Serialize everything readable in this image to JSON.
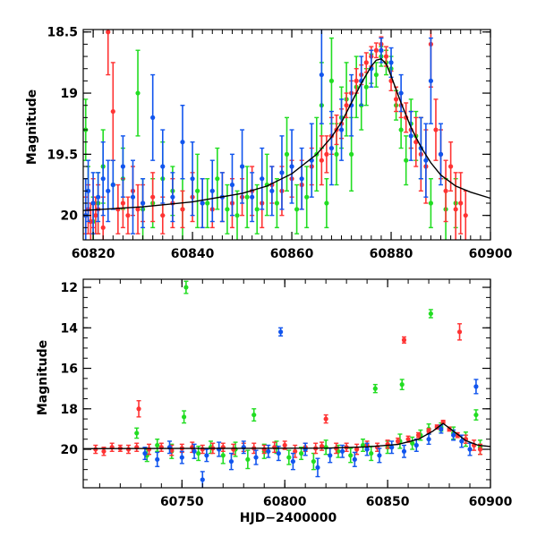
{
  "colors": {
    "green": "#22dd22",
    "red": "#ff3333",
    "blue": "#1155ee",
    "model": "#000000",
    "axis": "#000000"
  },
  "chart_data": [
    {
      "type": "scatter",
      "title": "",
      "xlabel": "",
      "ylabel": "Magnitude",
      "xlim": [
        60818,
        60900
      ],
      "ylim": [
        18.48,
        20.2
      ],
      "y_inverted": true,
      "xticks": [
        60820,
        60840,
        60860,
        60880,
        60900
      ],
      "xtick_labels": [
        "60820",
        "60840",
        "60860",
        "60880",
        "60900"
      ],
      "yticks": [
        18.5,
        19,
        19.5,
        20
      ],
      "ytick_labels": [
        "18.5",
        "19",
        "19.5",
        "20"
      ],
      "grid": false,
      "model_curve": {
        "x": [
          60818,
          60830,
          60840,
          60850,
          60855,
          60860,
          60865,
          60868,
          60870,
          60872,
          60874,
          60876,
          60877,
          60878,
          60879,
          60880,
          60882,
          60884,
          60886,
          60888,
          60890,
          60893,
          60896,
          60900
        ],
        "y": [
          19.96,
          19.93,
          19.89,
          19.82,
          19.76,
          19.66,
          19.5,
          19.36,
          19.24,
          19.08,
          18.92,
          18.78,
          18.73,
          18.72,
          18.76,
          18.86,
          19.08,
          19.28,
          19.44,
          19.57,
          19.67,
          19.76,
          19.81,
          19.86
        ]
      },
      "series": [
        {
          "color": "green",
          "x": [
            60818.5,
            60819,
            60820,
            60821,
            60822,
            60824,
            60826,
            60829,
            60830,
            60832,
            60834,
            60836,
            60838,
            60841,
            60843,
            60845,
            60847,
            60849,
            60851,
            60853,
            60855,
            60857,
            60859,
            60861,
            60863,
            60865,
            60866,
            60867,
            60868,
            60869,
            60870,
            60871,
            60872,
            60873,
            60874,
            60875,
            60876,
            60877,
            60878,
            60879,
            60880,
            60881,
            60882,
            60883,
            60884,
            60885,
            60886,
            60888,
            60891,
            60893
          ],
          "y": [
            19.3,
            19.8,
            20.05,
            19.9,
            19.6,
            19.75,
            19.7,
            19.0,
            19.95,
            19.9,
            19.7,
            19.8,
            19.95,
            19.8,
            19.9,
            19.7,
            19.95,
            20.0,
            19.85,
            19.95,
            19.75,
            19.9,
            19.5,
            19.95,
            19.85,
            19.5,
            19.1,
            19.9,
            18.9,
            19.5,
            19.2,
            19.05,
            19.5,
            18.95,
            19.1,
            18.95,
            18.8,
            18.85,
            18.7,
            18.75,
            18.8,
            19.1,
            19.3,
            19.55,
            19.25,
            19.35,
            19.45,
            19.9,
            19.95,
            19.9
          ],
          "err": [
            0.25,
            0.2,
            0.2,
            0.25,
            0.3,
            0.2,
            0.25,
            0.35,
            0.25,
            0.2,
            0.3,
            0.2,
            0.25,
            0.3,
            0.2,
            0.25,
            0.2,
            0.2,
            0.25,
            0.2,
            0.25,
            0.2,
            0.3,
            0.2,
            0.25,
            0.3,
            0.35,
            0.2,
            0.35,
            0.25,
            0.25,
            0.3,
            0.3,
            0.25,
            0.2,
            0.15,
            0.12,
            0.1,
            0.08,
            0.1,
            0.1,
            0.12,
            0.15,
            0.2,
            0.2,
            0.2,
            0.25,
            0.2,
            0.25,
            0.2
          ]
        },
        {
          "color": "red",
          "x": [
            60818.5,
            60819,
            60819.5,
            60820,
            60820.5,
            60821,
            60822,
            60823,
            60824,
            60825,
            60826,
            60827,
            60828,
            60829,
            60830,
            60832,
            60834,
            60836,
            60838,
            60840,
            60842,
            60844,
            60846,
            60848,
            60850,
            60852,
            60854,
            60856,
            60858,
            60860,
            60862,
            60864,
            60866,
            60867,
            60868,
            60869,
            60870,
            60871,
            60872,
            60873,
            60874,
            60875,
            60876,
            60877,
            60878,
            60879,
            60880,
            60881,
            60882,
            60883,
            60884,
            60885,
            60886,
            60887,
            60888,
            60889,
            60890,
            60891,
            60892,
            60893,
            60894,
            60895
          ],
          "y": [
            20.0,
            19.95,
            20.05,
            19.9,
            20.0,
            19.95,
            20.1,
            18.5,
            19.15,
            19.95,
            19.9,
            20.0,
            19.8,
            19.95,
            19.9,
            19.85,
            20.0,
            19.9,
            19.95,
            19.85,
            19.9,
            19.95,
            19.85,
            19.9,
            19.85,
            19.8,
            19.9,
            19.75,
            19.8,
            19.7,
            19.75,
            19.6,
            19.55,
            19.5,
            19.35,
            19.3,
            19.25,
            19.1,
            19.0,
            18.9,
            18.85,
            18.75,
            18.7,
            18.65,
            18.6,
            18.7,
            18.9,
            19.05,
            19.1,
            19.2,
            19.3,
            19.4,
            19.5,
            19.6,
            18.6,
            19.3,
            19.5,
            19.8,
            19.6,
            19.95,
            19.9,
            20.0
          ],
          "err": [
            0.15,
            0.2,
            0.15,
            0.2,
            0.15,
            0.2,
            0.25,
            0.35,
            0.4,
            0.2,
            0.2,
            0.15,
            0.2,
            0.2,
            0.15,
            0.2,
            0.15,
            0.2,
            0.15,
            0.2,
            0.2,
            0.15,
            0.2,
            0.2,
            0.15,
            0.2,
            0.2,
            0.15,
            0.2,
            0.15,
            0.2,
            0.15,
            0.2,
            0.15,
            0.15,
            0.12,
            0.12,
            0.1,
            0.1,
            0.1,
            0.08,
            0.08,
            0.08,
            0.06,
            0.06,
            0.08,
            0.08,
            0.1,
            0.1,
            0.12,
            0.15,
            0.2,
            0.3,
            0.3,
            0.35,
            0.25,
            0.2,
            0.25,
            0.2,
            0.3,
            0.25,
            0.2
          ]
        },
        {
          "color": "blue",
          "x": [
            60818.5,
            60819,
            60820,
            60821,
            60822,
            60823,
            60824,
            60826,
            60828,
            60830,
            60832,
            60834,
            60836,
            60838,
            60840,
            60842,
            60844,
            60846,
            60848,
            60850,
            60852,
            60854,
            60856,
            60858,
            60860,
            60862,
            60864,
            60866,
            60868,
            60870,
            60872,
            60874,
            60876,
            60878,
            60880,
            60882,
            60884,
            60886,
            60887,
            60888,
            60890
          ],
          "y": [
            20.0,
            19.8,
            19.9,
            19.85,
            19.7,
            19.8,
            19.75,
            19.6,
            19.85,
            19.9,
            19.2,
            19.6,
            19.85,
            19.4,
            19.7,
            19.9,
            19.8,
            19.85,
            19.75,
            19.6,
            19.85,
            19.7,
            19.8,
            19.65,
            19.6,
            19.7,
            19.55,
            18.85,
            19.45,
            19.3,
            19.1,
            18.9,
            18.8,
            18.65,
            18.75,
            19.0,
            19.35,
            19.45,
            19.55,
            18.9,
            19.5
          ],
          "err": [
            0.3,
            0.25,
            0.25,
            0.2,
            0.3,
            0.25,
            0.2,
            0.25,
            0.3,
            0.2,
            0.35,
            0.3,
            0.2,
            0.3,
            0.3,
            0.2,
            0.25,
            0.2,
            0.25,
            0.3,
            0.2,
            0.25,
            0.2,
            0.3,
            0.3,
            0.25,
            0.3,
            0.4,
            0.3,
            0.25,
            0.25,
            0.2,
            0.15,
            0.1,
            0.12,
            0.15,
            0.2,
            0.25,
            0.3,
            0.35,
            0.25
          ]
        }
      ]
    },
    {
      "type": "scatter",
      "title": "",
      "xlabel": "HJD−2400000",
      "ylabel": "Magnitude",
      "xlim": [
        60702,
        60900
      ],
      "ylim": [
        11.6,
        21.9
      ],
      "y_inverted": true,
      "xticks": [
        60750,
        60800,
        60850,
        60900
      ],
      "xtick_labels": [
        "60750",
        "60800",
        "60850",
        "60900"
      ],
      "yticks": [
        12,
        14,
        16,
        18,
        20
      ],
      "ytick_labels": [
        "12",
        "14",
        "16",
        "18",
        "20"
      ],
      "grid": false,
      "model_curve": {
        "x": [
          60702,
          60740,
          60780,
          60820,
          60840,
          60855,
          60865,
          60872,
          60877,
          60882,
          60888,
          60894,
          60900
        ],
        "y": [
          19.97,
          19.96,
          19.95,
          19.94,
          19.88,
          19.76,
          19.5,
          19.1,
          18.72,
          19.1,
          19.57,
          19.8,
          19.86
        ]
      },
      "series": [
        {
          "color": "green",
          "x": [
            60728,
            60733,
            60738,
            60745,
            60751,
            60752,
            60758,
            60764,
            60770,
            60776,
            60782,
            60785,
            60790,
            60796,
            60802,
            60808,
            60814,
            60820,
            60826,
            60832,
            60838,
            60842,
            60844,
            60850,
            60856,
            60857,
            60862,
            60866,
            60870,
            60871,
            60876,
            60882,
            60888,
            60893,
            60895
          ],
          "y": [
            19.2,
            20.3,
            19.8,
            20.1,
            18.4,
            12.0,
            20.2,
            19.9,
            20.3,
            20.0,
            20.5,
            18.3,
            20.1,
            19.9,
            20.4,
            20.2,
            20.6,
            19.9,
            20.1,
            20.3,
            19.8,
            20.2,
            17.0,
            19.9,
            19.6,
            16.8,
            19.7,
            19.3,
            19.0,
            13.3,
            18.9,
            19.2,
            19.5,
            18.3,
            19.9
          ],
          "err": [
            0.25,
            0.3,
            0.3,
            0.35,
            0.3,
            0.3,
            0.35,
            0.3,
            0.4,
            0.35,
            0.45,
            0.3,
            0.35,
            0.3,
            0.35,
            0.3,
            0.4,
            0.35,
            0.3,
            0.35,
            0.3,
            0.35,
            0.2,
            0.3,
            0.35,
            0.25,
            0.3,
            0.25,
            0.25,
            0.2,
            0.2,
            0.3,
            0.35,
            0.25,
            0.35
          ]
        },
        {
          "color": "red",
          "x": [
            60708,
            60712,
            60716,
            60720,
            60724,
            60728,
            60729,
            60734,
            60740,
            60745,
            60750,
            60755,
            60760,
            60765,
            60770,
            60775,
            60780,
            60785,
            60790,
            60795,
            60800,
            60805,
            60810,
            60815,
            60818,
            60820,
            60825,
            60830,
            60835,
            60840,
            60845,
            60850,
            60855,
            60858,
            60860,
            60865,
            60870,
            60874,
            60877,
            60880,
            60884,
            60885,
            60888,
            60892,
            60895
          ],
          "y": [
            20.0,
            20.1,
            19.9,
            19.95,
            20.0,
            19.9,
            18.0,
            20.0,
            19.9,
            20.05,
            19.95,
            19.9,
            20.0,
            19.95,
            19.9,
            20.0,
            19.9,
            19.95,
            20.0,
            19.9,
            19.8,
            20.1,
            19.9,
            19.95,
            19.85,
            18.5,
            19.95,
            19.9,
            20.0,
            19.8,
            19.9,
            19.75,
            19.6,
            14.6,
            19.5,
            19.3,
            19.1,
            18.9,
            18.65,
            19.0,
            19.3,
            14.2,
            19.5,
            19.8,
            20.0
          ],
          "err": [
            0.2,
            0.2,
            0.2,
            0.15,
            0.2,
            0.2,
            0.4,
            0.25,
            0.2,
            0.25,
            0.2,
            0.25,
            0.2,
            0.25,
            0.2,
            0.25,
            0.2,
            0.25,
            0.2,
            0.25,
            0.2,
            0.3,
            0.2,
            0.25,
            0.2,
            0.2,
            0.25,
            0.2,
            0.25,
            0.2,
            0.2,
            0.2,
            0.15,
            0.15,
            0.15,
            0.12,
            0.12,
            0.1,
            0.08,
            0.1,
            0.12,
            0.4,
            0.2,
            0.25,
            0.25
          ]
        },
        {
          "color": "blue",
          "x": [
            60732,
            60738,
            60744,
            60750,
            60756,
            60760,
            60762,
            60768,
            60774,
            60780,
            60786,
            60792,
            60797,
            60798,
            60804,
            60810,
            60816,
            60822,
            60828,
            60834,
            60840,
            60846,
            60852,
            60858,
            60864,
            60870,
            60876,
            60882,
            60886,
            60890,
            60893
          ],
          "y": [
            20.2,
            20.5,
            19.9,
            20.4,
            20.1,
            21.5,
            20.3,
            20.0,
            20.6,
            19.9,
            20.4,
            20.1,
            20.2,
            14.2,
            20.6,
            20.0,
            20.9,
            20.3,
            20.1,
            20.5,
            20.0,
            20.3,
            19.9,
            20.1,
            19.8,
            19.5,
            19.0,
            19.3,
            19.6,
            20.0,
            16.9
          ],
          "err": [
            0.3,
            0.35,
            0.3,
            0.3,
            0.35,
            0.4,
            0.3,
            0.35,
            0.4,
            0.3,
            0.35,
            0.3,
            0.35,
            0.2,
            0.4,
            0.3,
            0.45,
            0.35,
            0.3,
            0.35,
            0.3,
            0.35,
            0.3,
            0.3,
            0.3,
            0.25,
            0.2,
            0.25,
            0.3,
            0.3,
            0.35
          ]
        }
      ]
    }
  ]
}
